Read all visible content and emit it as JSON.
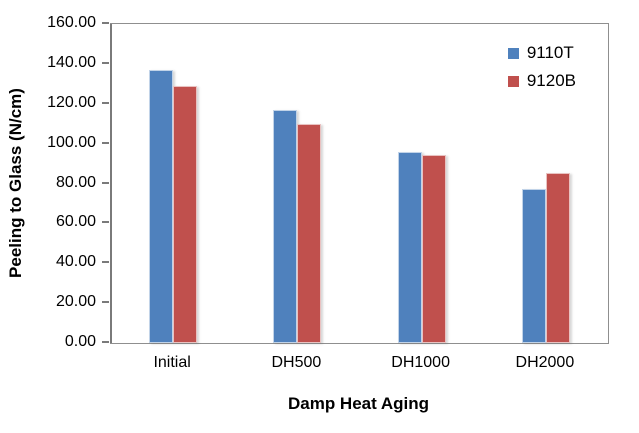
{
  "chart_data": {
    "type": "bar",
    "title": "",
    "xlabel": "Damp Heat Aging",
    "ylabel": "Peeling to Glass (N/cm)",
    "categories": [
      "Initial",
      "DH500",
      "DH1000",
      "DH2000"
    ],
    "series": [
      {
        "name": "9110T",
        "color": "#4F81BD",
        "values": [
          137,
          117,
          96,
          77.5
        ]
      },
      {
        "name": "9120B",
        "color": "#C0504D",
        "values": [
          129,
          110,
          94.5,
          85.5
        ]
      }
    ],
    "ylim": [
      0,
      160
    ],
    "ytick_step": 20,
    "ytick_labels": [
      "0.00",
      "20.00",
      "40.00",
      "60.00",
      "80.00",
      "100.00",
      "120.00",
      "140.00",
      "160.00"
    ],
    "grid": false,
    "legend_position": "top-right-inside"
  },
  "colors": {
    "axis_line": "#7a7a7a",
    "plot_border": "#8f8f8f",
    "text": "#000000",
    "background": "#ffffff"
  }
}
